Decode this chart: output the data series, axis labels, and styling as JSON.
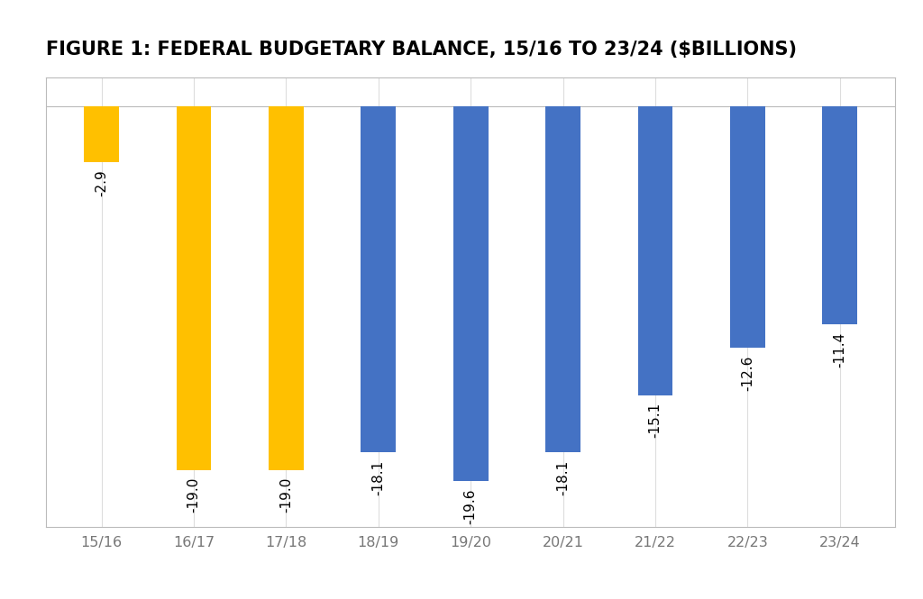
{
  "title": "FIGURE 1: FEDERAL BUDGETARY BALANCE, 15/16 TO 23/24 ($BILLIONS)",
  "categories": [
    "15/16",
    "16/17",
    "17/18",
    "18/19",
    "19/20",
    "20/21",
    "21/22",
    "22/23",
    "23/24"
  ],
  "values": [
    -2.9,
    -19.0,
    -19.0,
    -18.1,
    -19.6,
    -18.1,
    -15.1,
    -12.6,
    -11.4
  ],
  "bar_colors": [
    "#FFC000",
    "#FFC000",
    "#FFC000",
    "#4472C4",
    "#4472C4",
    "#4472C4",
    "#4472C4",
    "#4472C4",
    "#4472C4"
  ],
  "ylim": [
    -22,
    1.5
  ],
  "background_color": "#FFFFFF",
  "plot_background": "#FFFFFF",
  "title_fontsize": 15,
  "tick_fontsize": 11.5,
  "label_fontsize": 11,
  "bar_width": 0.38
}
